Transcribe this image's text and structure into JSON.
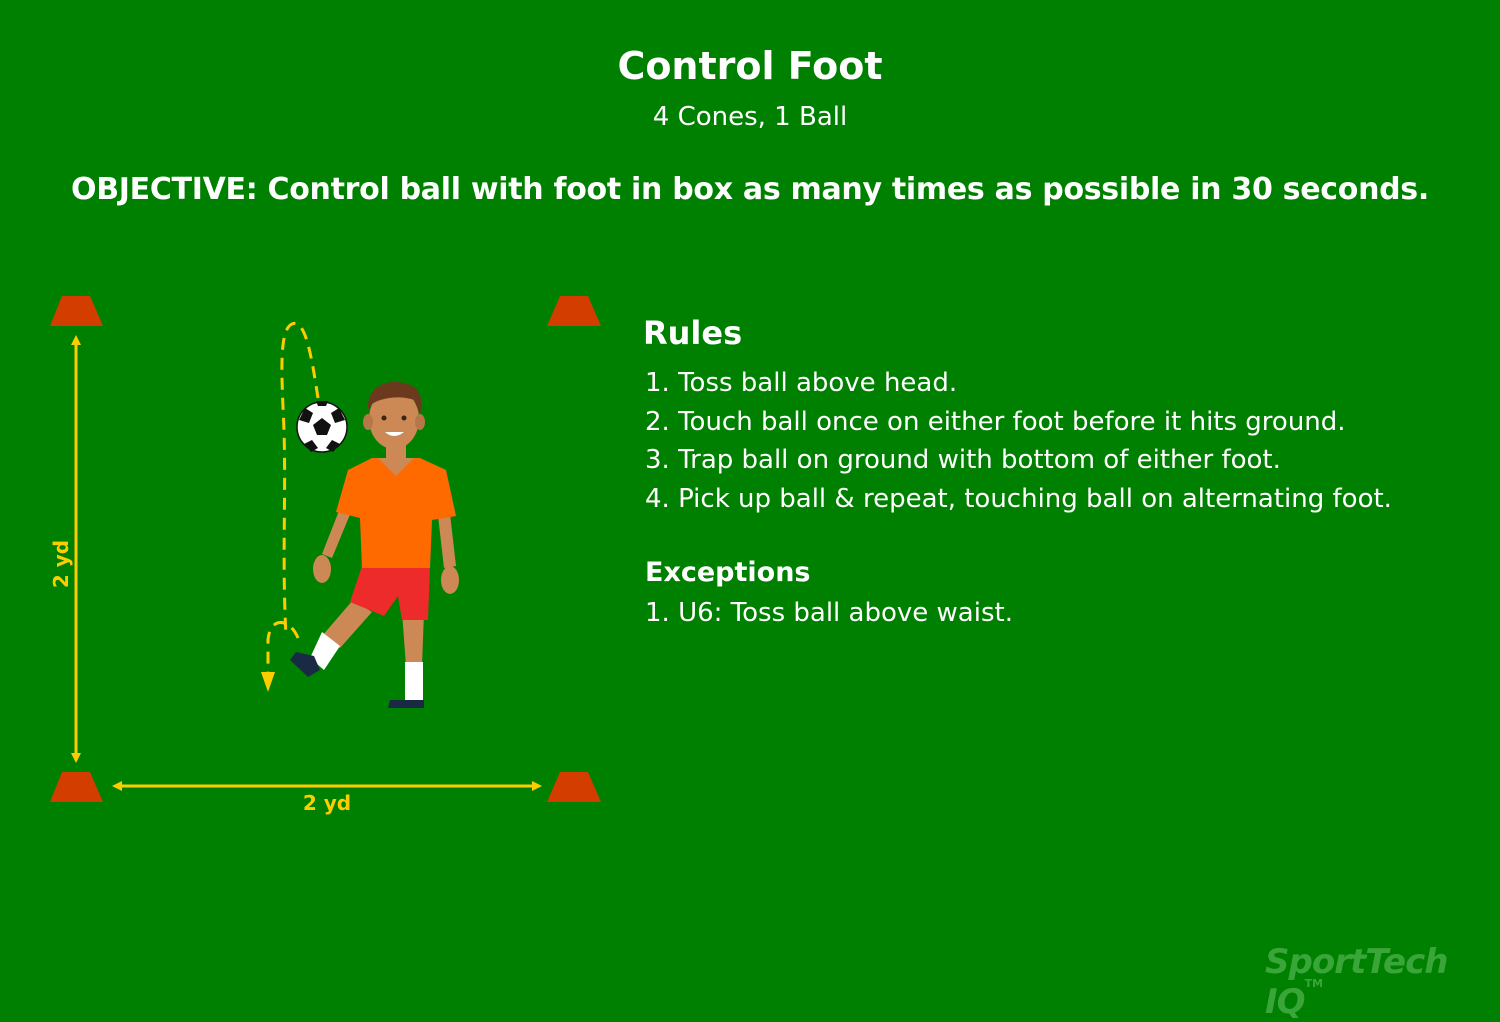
{
  "title": "Control Foot",
  "equipment": "4 Cones, 1 Ball",
  "objective": "OBJECTIVE: Control ball with foot in box as many times as possible in 30 seconds.",
  "rules": {
    "heading": "Rules",
    "items": [
      "1. Toss ball above head.",
      "2. Touch ball once on either foot before it hits ground.",
      "3. Trap ball on ground with bottom of either foot.",
      "4. Pick up ball & repeat, touching ball on alternating foot."
    ]
  },
  "exceptions": {
    "heading": "Exceptions",
    "items": [
      "1. U6: Toss ball above waist."
    ]
  },
  "diagram": {
    "vertical_dimension": "2 yd",
    "horizontal_dimension": "2 yd"
  },
  "brand": {
    "name": "SportTech IQ",
    "mark": "TM"
  },
  "colors": {
    "field": "#008000",
    "cone": "#d33d00",
    "arrow": "#ffcc00",
    "jersey": "#ff6a00",
    "shorts": "#ee2b2b",
    "skin": "#cc8855",
    "brand": "#3aa63a"
  }
}
